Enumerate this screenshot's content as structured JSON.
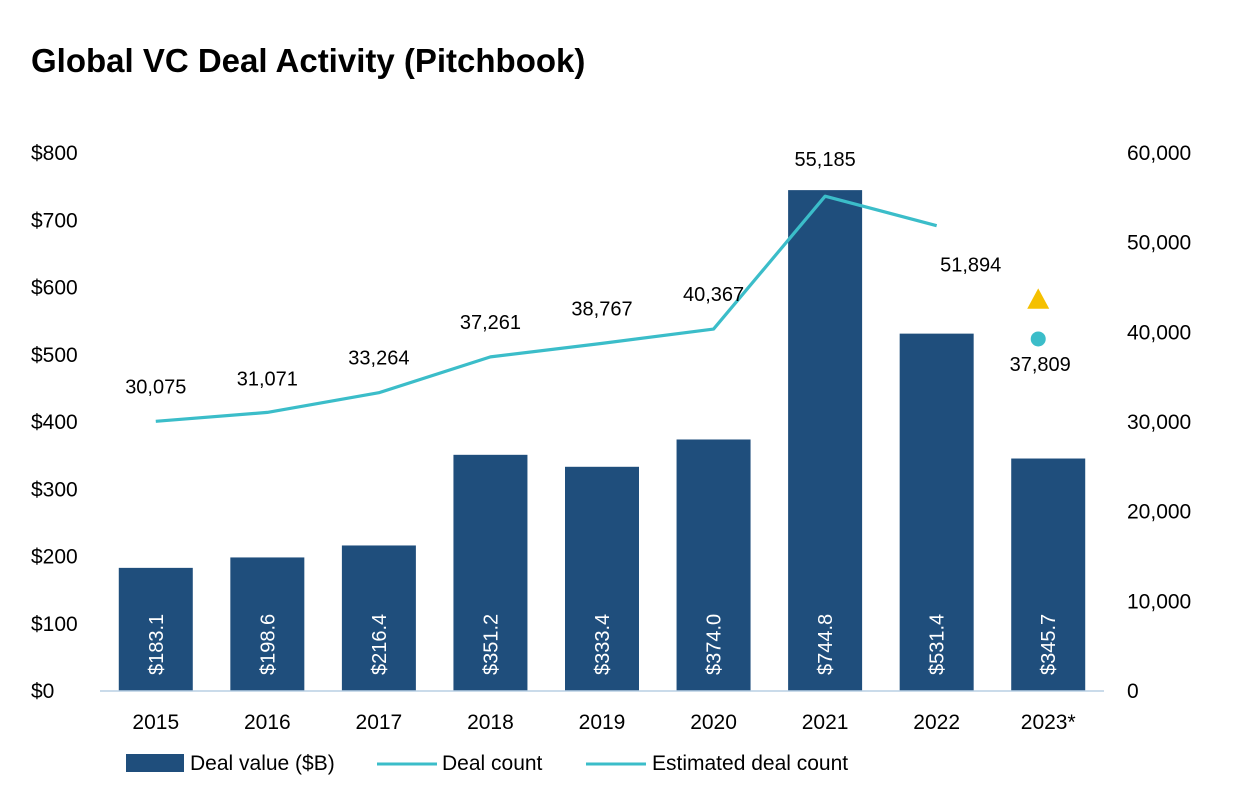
{
  "colors": {
    "bar": "#1f4e7c",
    "line": "#3bbdc9",
    "estimate_marker": "#3bbdc9",
    "highlight_marker": "#f5c000",
    "axis": "#b8cfe3"
  },
  "chart_data": {
    "type": "bar",
    "title": "Global VC Deal Activity (Pitchbook)",
    "categories": [
      "2015",
      "2016",
      "2017",
      "2018",
      "2019",
      "2020",
      "2021",
      "2022",
      "2023*"
    ],
    "series": [
      {
        "name": "Deal value ($B)",
        "type": "bar",
        "axis": "left",
        "values": [
          183.1,
          198.6,
          216.4,
          351.2,
          333.4,
          374.0,
          744.8,
          531.4,
          345.7
        ],
        "labels": [
          "$183.1",
          "$198.6",
          "$216.4",
          "$351.2",
          "$333.4",
          "$374.0",
          "$744.8",
          "$531.4",
          "$345.7"
        ]
      },
      {
        "name": "Deal count",
        "type": "line",
        "axis": "right",
        "values": [
          30075,
          31071,
          33264,
          37261,
          38767,
          40367,
          55185,
          51894,
          null
        ],
        "labels": [
          "30,075",
          "31,071",
          "33,264",
          "37,261",
          "38,767",
          "40,367",
          "55,185",
          "51,894",
          ""
        ]
      },
      {
        "name": "Estimated deal count",
        "type": "point",
        "axis": "right",
        "values": [
          null,
          null,
          null,
          null,
          null,
          null,
          null,
          null,
          37809
        ],
        "labels": [
          "",
          "",
          "",
          "",
          "",
          "",
          "",
          "",
          "37,809"
        ]
      }
    ],
    "extra_marker": {
      "shape": "triangle",
      "category": "2023*",
      "value": 43000
    },
    "left_axis": {
      "ylim": [
        0,
        800
      ],
      "ticks": [
        0,
        100,
        200,
        300,
        400,
        500,
        600,
        700,
        800
      ],
      "tick_labels": [
        "$0",
        "$100",
        "$200",
        "$300",
        "$400",
        "$500",
        "$600",
        "$700",
        "$800"
      ]
    },
    "right_axis": {
      "ylim": [
        0,
        60000
      ],
      "ticks": [
        0,
        10000,
        20000,
        30000,
        40000,
        50000,
        60000
      ],
      "tick_labels": [
        "0",
        "10,000",
        "20,000",
        "30,000",
        "40,000",
        "50,000",
        "60,000"
      ]
    },
    "legend": {
      "position": "bottom",
      "items": [
        "Deal value ($B)",
        "Deal count",
        "Estimated deal count"
      ]
    }
  }
}
